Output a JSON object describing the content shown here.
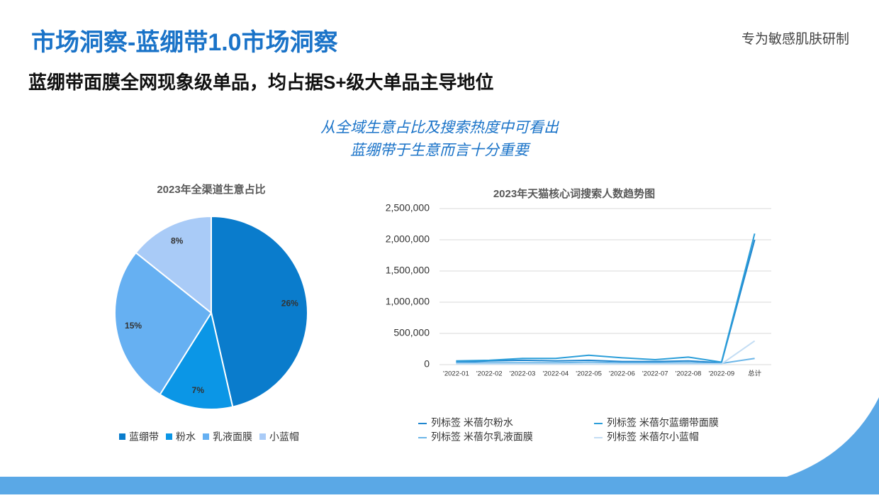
{
  "header": {
    "title": "市场洞察-蓝绷带1.0市场洞察",
    "tagline": "专为敏感肌肤研制",
    "subtitle": "蓝绷带面膜全网现象级单品，均占据S+级大单品主导地位",
    "note": [
      "从全域生意占比及搜索热度中可看出",
      "蓝绷带于生意而言十分重要"
    ]
  },
  "chart_data": [
    {
      "type": "pie",
      "title": "2023年全渠道生意占比",
      "categories": [
        "蓝绷带",
        "粉水",
        "乳液面膜",
        "小蓝帽"
      ],
      "values": [
        26,
        7,
        15,
        8
      ],
      "value_labels": [
        "26%",
        "7%",
        "15%",
        "8%"
      ],
      "colors": [
        "#0a7ccc",
        "#0b96e6",
        "#66b0f2",
        "#a9cbf7"
      ],
      "legend": "bottom"
    },
    {
      "type": "line",
      "title": "2023年天猫核心词搜索人数趋势图",
      "categories": [
        "'2022-01",
        "'2022-02",
        "'2022-03",
        "'2022-04",
        "'2022-05",
        "'2022-06",
        "'2022-07",
        "'2022-08",
        "'2022-09",
        "总计"
      ],
      "series": [
        {
          "name": "列标签 米蓓尔粉水",
          "color": "#1f86cf",
          "values": [
            40000,
            60000,
            70000,
            60000,
            70000,
            50000,
            50000,
            60000,
            30000,
            2000000
          ]
        },
        {
          "name": "列标签 米蓓尔蓝绷带面膜",
          "color": "#2b9ed9",
          "values": [
            60000,
            70000,
            100000,
            100000,
            150000,
            110000,
            80000,
            120000,
            40000,
            2100000
          ]
        },
        {
          "name": "列标签 米蓓尔乳液面膜",
          "color": "#6cb6e8",
          "values": [
            30000,
            30000,
            30000,
            30000,
            40000,
            30000,
            30000,
            30000,
            20000,
            100000
          ]
        },
        {
          "name": "列标签 米蓓尔小蓝帽",
          "color": "#c3ddf4",
          "values": [
            10000,
            10000,
            10000,
            10000,
            10000,
            10000,
            10000,
            10000,
            10000,
            380000
          ]
        }
      ],
      "ylim": [
        0,
        2500000
      ],
      "yticks": [
        0,
        {
          "value": 500000,
          "label": "500,000"
        },
        {
          "value": 1000000,
          "label": "1,000,000"
        },
        {
          "value": 1500000,
          "label": "1,500,000"
        },
        {
          "value": 2000000,
          "label": "2,000,000"
        },
        {
          "value": 2500000,
          "label": "2,500,000"
        }
      ],
      "grid": true,
      "legend": "bottom"
    }
  ]
}
